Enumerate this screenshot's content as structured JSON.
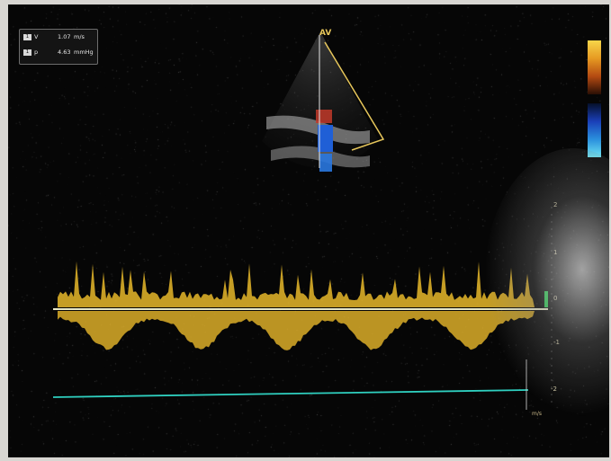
{
  "measurements": {
    "velocity": {
      "marker": "1",
      "label": "V",
      "value": "1.07",
      "unit": "m/s"
    },
    "gradient": {
      "marker": "1",
      "label": "p",
      "value": "4.63",
      "unit": "mmHg"
    }
  },
  "av_label": "AV",
  "scale_ticks": [
    "2",
    "1",
    "0",
    "-1",
    "-2"
  ],
  "sweep_label": "m/s",
  "colors": {
    "spectral": "#e8b82a",
    "baseline": "#e8e8c8",
    "measure_line": "#2fd0c0",
    "marker": "#22c84a"
  }
}
